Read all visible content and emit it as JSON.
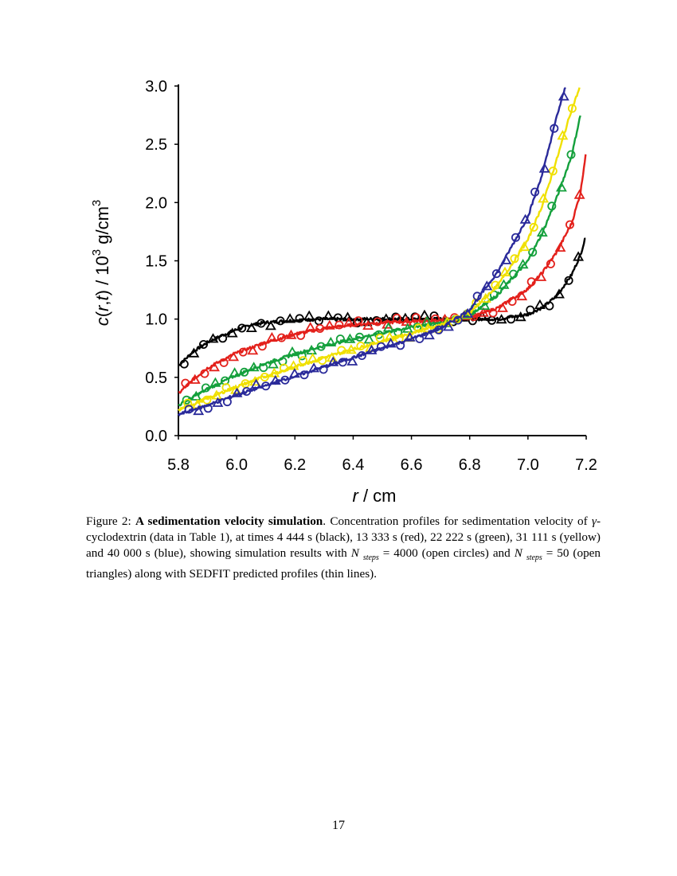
{
  "caption": {
    "figure_label": "Figure 2: ",
    "title": "A sedimentation velocity simulation",
    "text_1": ". Concentration profiles for sedimentation velocity of ",
    "gamma": "γ",
    "text_2": "-cyclodextrin (data in Table 1), at times 4 444 s (black), 13 333 s (red), 22 222 s (green), 31 111 s (yellow) and 40 000 s (blue), showing simulation results with ",
    "n_1": "N",
    "steps_1": "steps",
    "text_3": " = 4000 (open circles) and ",
    "n_2": "N",
    "steps_2": "steps",
    "text_4": " = 50 (open triangles) along with SEDFIT predicted profiles (thin lines)."
  },
  "page_number": "17",
  "chart_data": {
    "type": "scatter",
    "xlabel": "r / cm",
    "ylabel": "c(r,t)  / 10³ g/cm³",
    "xlim": [
      5.8,
      7.2
    ],
    "ylim": [
      0.0,
      3.0
    ],
    "x_ticks": [
      "5.8",
      "6.0",
      "6.2",
      "6.4",
      "6.6",
      "6.8",
      "7.0",
      "7.2"
    ],
    "y_ticks": [
      "0.0",
      "0.5",
      "1.0",
      "1.5",
      "2.0",
      "2.5",
      "3.0"
    ],
    "grid": false,
    "legend": "none (series described in caption)",
    "marker_legend": {
      "circle": "N steps = 4000",
      "triangle": "N steps = 50",
      "line": "SEDFIT"
    },
    "series": [
      {
        "time": "4 444 s",
        "color": "#000000",
        "x": [
          5.8,
          5.85,
          5.9,
          5.95,
          6.0,
          6.05,
          6.1,
          6.2,
          6.3,
          6.5,
          6.7,
          6.8,
          6.9,
          7.0,
          7.05,
          7.1,
          7.15,
          7.18,
          7.2
        ],
        "y": [
          0.6,
          0.72,
          0.8,
          0.86,
          0.91,
          0.95,
          0.97,
          0.99,
          1.0,
          1.0,
          1.0,
          1.0,
          1.0,
          1.04,
          1.1,
          1.2,
          1.38,
          1.55,
          1.72
        ]
      },
      {
        "time": "13 333 s",
        "color": "#e3201b",
        "x": [
          5.8,
          5.85,
          5.9,
          6.0,
          6.1,
          6.2,
          6.3,
          6.4,
          6.5,
          6.6,
          6.7,
          6.8,
          6.9,
          7.0,
          7.05,
          7.1,
          7.15,
          7.18,
          7.2
        ],
        "y": [
          0.36,
          0.48,
          0.58,
          0.71,
          0.8,
          0.87,
          0.92,
          0.95,
          0.97,
          0.98,
          0.99,
          1.01,
          1.1,
          1.26,
          1.4,
          1.58,
          1.82,
          2.08,
          2.45
        ]
      },
      {
        "time": "22 222 s",
        "color": "#14a03c",
        "x": [
          5.8,
          5.85,
          5.9,
          6.0,
          6.1,
          6.2,
          6.3,
          6.4,
          6.5,
          6.6,
          6.7,
          6.8,
          6.9,
          7.0,
          7.05,
          7.1,
          7.15,
          7.18
        ],
        "y": [
          0.26,
          0.33,
          0.4,
          0.52,
          0.62,
          0.7,
          0.77,
          0.83,
          0.88,
          0.93,
          0.97,
          1.03,
          1.22,
          1.5,
          1.74,
          2.05,
          2.4,
          2.75
        ]
      },
      {
        "time": "31 111 s",
        "color": "#f0e000",
        "x": [
          5.8,
          5.9,
          6.0,
          6.1,
          6.2,
          6.3,
          6.4,
          6.5,
          6.6,
          6.7,
          6.8,
          6.9,
          7.0,
          7.05,
          7.1,
          7.15,
          7.18
        ],
        "y": [
          0.22,
          0.32,
          0.42,
          0.51,
          0.59,
          0.67,
          0.74,
          0.81,
          0.88,
          0.95,
          1.05,
          1.3,
          1.68,
          1.98,
          2.38,
          2.8,
          3.0
        ]
      },
      {
        "time": "40 000 s",
        "color": "#2a2a9a",
        "x": [
          5.8,
          5.9,
          6.0,
          6.1,
          6.2,
          6.3,
          6.4,
          6.5,
          6.6,
          6.7,
          6.8,
          6.9,
          7.0,
          7.05,
          7.1,
          7.13
        ],
        "y": [
          0.18,
          0.26,
          0.35,
          0.43,
          0.51,
          0.59,
          0.67,
          0.75,
          0.83,
          0.92,
          1.08,
          1.42,
          1.88,
          2.25,
          2.75,
          3.0
        ]
      }
    ]
  }
}
